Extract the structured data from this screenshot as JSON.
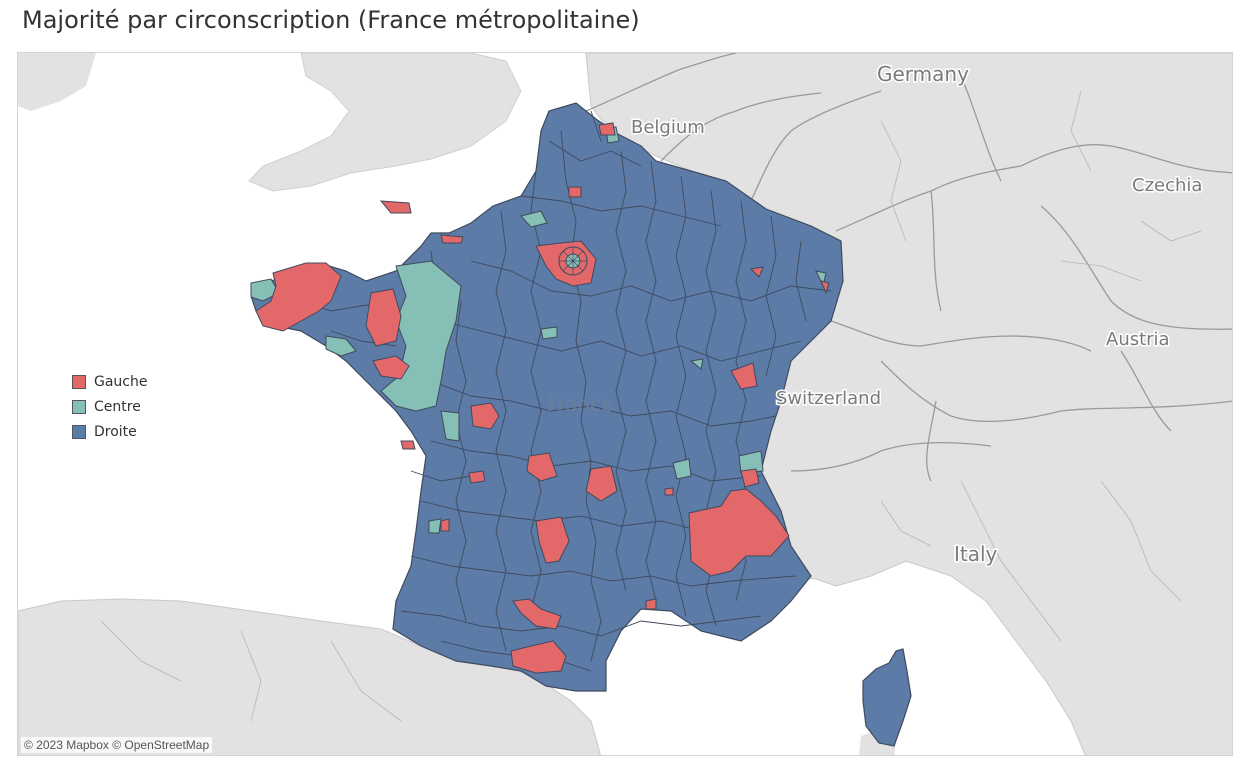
{
  "title": "Majorité par circonscription (France métropolitaine)",
  "legend": [
    {
      "label": "Gauche",
      "color": "#E3686A"
    },
    {
      "label": "Centre",
      "color": "#86BFB5"
    },
    {
      "label": "Droite",
      "color": "#5C7BA6"
    }
  ],
  "map": {
    "country_labels": {
      "germany": "Germany",
      "belgium": "Belgium",
      "czechia": "Czechia",
      "austria": "Austria",
      "switzerland": "Switzerland",
      "italy": "Italy",
      "france": "France"
    },
    "colors": {
      "water": "#ffffff",
      "land": "#e2e2e2",
      "borders": "#9a9a9a",
      "district_border": "#3f4a5e"
    }
  },
  "attribution": "© 2023 Mapbox © OpenStreetMap"
}
